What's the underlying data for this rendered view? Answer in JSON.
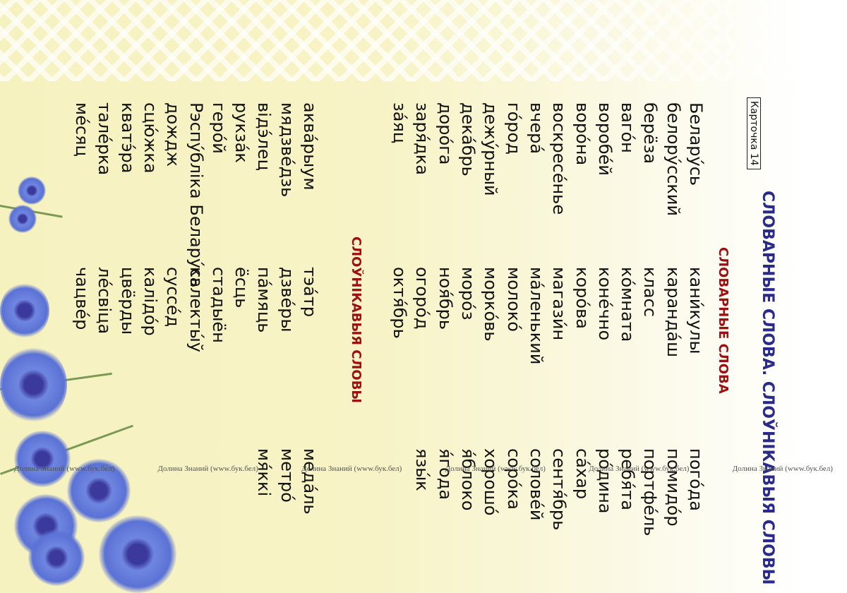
{
  "title": "СЛОВАРНЫЕ СЛОВА. СЛОЎНІКАВЫЯ СЛОВЫ",
  "card_label": "Карточка 14",
  "russian": {
    "heading": "СЛОВАРНЫЕ СЛОВА",
    "columns": [
      [
        "Белару́сь",
        "белору́сский",
        "берёза",
        "ваго́н",
        "воробе́й",
        "воро́на",
        "воскресе́нье",
        "вчера́",
        "го́род",
        "дежу́рный",
        "дека́брь",
        "доро́га",
        "заря́дка",
        "за́яц"
      ],
      [
        "кани́кулы",
        "каранда́ш",
        "класс",
        "ко́мната",
        "коне́чно",
        "коро́ва",
        "магази́н",
        "ма́ленький",
        "молоко́",
        "морко́вь",
        "моро́з",
        "ноя́брь",
        "огоро́д",
        "октя́брь"
      ],
      [
        "пого́да",
        "помидо́р",
        "портфе́ль",
        "ребя́та",
        "ро́дина",
        "са́хар",
        "сентя́брь",
        "солове́й",
        "соро́ка",
        "хорошо́",
        "я́блоко",
        "я́года",
        "язы́к"
      ]
    ]
  },
  "belarusian": {
    "heading": "СЛОЎНІКАВЫЯ СЛОВЫ",
    "columns": [
      [
        "аква́рыум",
        "мядзве́дзь",
        "відэ́лец",
        "рукза́к",
        "геро́й",
        "Рэспу́бліка Белару́сь",
        "дождж",
        "сцю́жка",
        "кватэ́ра",
        "тале́рка",
        "ме́сяц"
      ],
      [
        "тэа́тр",
        "дзве́ры",
        "па́мяць",
        "ёсць",
        "стадыён",
        "калекты́ў",
        "суссе́д",
        "калідо́р",
        "цвёрды",
        "ле́свіца",
        "чацве́р"
      ],
      [
        "меда́ль",
        "метро́",
        "мя́ккі"
      ]
    ]
  },
  "watermark": "Долина Знаний (www.бук.бел)",
  "colors": {
    "title": "#2a2a88",
    "heading": "#9b1010",
    "background": "#f6f2c0"
  }
}
